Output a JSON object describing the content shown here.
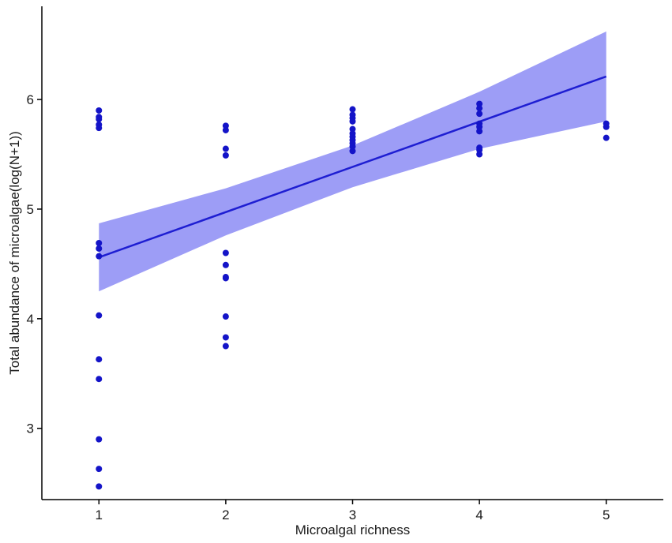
{
  "chart_data": {
    "type": "scatter",
    "xlabel": "Microalgal richness",
    "ylabel": "Total abundance of microalgae(log(N+1))",
    "xlim": [
      0.55,
      5.45
    ],
    "ylim": [
      2.35,
      6.85
    ],
    "x_ticks": [
      1,
      2,
      3,
      4,
      5
    ],
    "y_ticks": [
      3,
      4,
      5,
      6
    ],
    "grid": false,
    "legend": "none",
    "colors": {
      "points": "#1414c8",
      "fit_line": "#1e1ed2",
      "ribbon": "#8c8cf5",
      "axis": "#000000"
    },
    "points": [
      {
        "x": 1,
        "y": 5.9
      },
      {
        "x": 1,
        "y": 5.84
      },
      {
        "x": 1,
        "y": 5.82
      },
      {
        "x": 1,
        "y": 5.77
      },
      {
        "x": 1,
        "y": 5.74
      },
      {
        "x": 1,
        "y": 4.69
      },
      {
        "x": 1,
        "y": 4.64
      },
      {
        "x": 1,
        "y": 4.57
      },
      {
        "x": 1,
        "y": 4.03
      },
      {
        "x": 1,
        "y": 3.63
      },
      {
        "x": 1,
        "y": 3.45
      },
      {
        "x": 1,
        "y": 2.9
      },
      {
        "x": 1,
        "y": 2.63
      },
      {
        "x": 1,
        "y": 2.47
      },
      {
        "x": 2,
        "y": 5.76
      },
      {
        "x": 2,
        "y": 5.72
      },
      {
        "x": 2,
        "y": 5.55
      },
      {
        "x": 2,
        "y": 5.49
      },
      {
        "x": 2,
        "y": 4.6
      },
      {
        "x": 2,
        "y": 4.49
      },
      {
        "x": 2,
        "y": 4.38
      },
      {
        "x": 2,
        "y": 4.37
      },
      {
        "x": 2,
        "y": 4.02
      },
      {
        "x": 2,
        "y": 3.83
      },
      {
        "x": 2,
        "y": 3.75
      },
      {
        "x": 3,
        "y": 5.91
      },
      {
        "x": 3,
        "y": 5.86
      },
      {
        "x": 3,
        "y": 5.83
      },
      {
        "x": 3,
        "y": 5.8
      },
      {
        "x": 3,
        "y": 5.73
      },
      {
        "x": 3,
        "y": 5.69
      },
      {
        "x": 3,
        "y": 5.66
      },
      {
        "x": 3,
        "y": 5.63
      },
      {
        "x": 3,
        "y": 5.6
      },
      {
        "x": 3,
        "y": 5.57
      },
      {
        "x": 3,
        "y": 5.53
      },
      {
        "x": 4,
        "y": 5.96
      },
      {
        "x": 4,
        "y": 5.92
      },
      {
        "x": 4,
        "y": 5.87
      },
      {
        "x": 4,
        "y": 5.78
      },
      {
        "x": 4,
        "y": 5.75
      },
      {
        "x": 4,
        "y": 5.71
      },
      {
        "x": 4,
        "y": 5.56
      },
      {
        "x": 4,
        "y": 5.54
      },
      {
        "x": 4,
        "y": 5.5
      },
      {
        "x": 5,
        "y": 5.78
      },
      {
        "x": 5,
        "y": 5.75
      },
      {
        "x": 5,
        "y": 5.65
      }
    ],
    "fit_line": {
      "x": [
        1,
        5
      ],
      "y": [
        4.56,
        6.21
      ]
    },
    "confidence_band": {
      "x": [
        1,
        2,
        3,
        4,
        5
      ],
      "lower": [
        4.25,
        4.76,
        5.2,
        5.55,
        5.8
      ],
      "upper": [
        4.87,
        5.19,
        5.58,
        6.07,
        6.62
      ]
    }
  }
}
